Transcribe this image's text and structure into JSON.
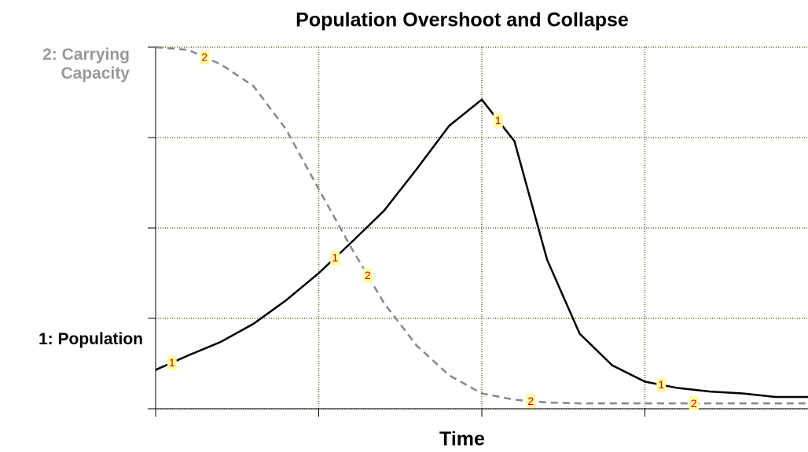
{
  "chart_data": {
    "type": "line",
    "title": "Population Overshoot and Collapse",
    "xlabel": "Time",
    "x": [
      0,
      0.2,
      0.4,
      0.6,
      0.8,
      1.0,
      1.2,
      1.4,
      1.6,
      1.8,
      2.0,
      2.2,
      2.4,
      2.6,
      2.8,
      3.0,
      3.2,
      3.4,
      3.6,
      3.8,
      4.0
    ],
    "series": [
      {
        "name": "1: Population",
        "marker": "1",
        "color": "#000000",
        "dashed": false,
        "values": [
          0.43,
          0.59,
          0.74,
          0.94,
          1.2,
          1.5,
          1.84,
          2.19,
          2.65,
          3.13,
          3.42,
          2.96,
          1.65,
          0.83,
          0.48,
          0.3,
          0.23,
          0.19,
          0.17,
          0.13,
          0.13
        ]
      },
      {
        "name": "2: Carrying Capacity",
        "marker": "2",
        "color": "#888888",
        "dashed": true,
        "values": [
          4.0,
          3.97,
          3.81,
          3.57,
          3.09,
          2.43,
          1.78,
          1.17,
          0.7,
          0.37,
          0.17,
          0.1,
          0.07,
          0.06,
          0.06,
          0.06,
          0.06,
          0.06,
          0.06,
          0.06,
          0.06
        ]
      }
    ],
    "xlim": [
      0,
      4
    ],
    "ylim": [
      0,
      4
    ],
    "xticks": [
      0,
      1,
      2,
      3,
      4
    ],
    "yticks": [
      0,
      1,
      2,
      3,
      4
    ],
    "grid": true
  }
}
